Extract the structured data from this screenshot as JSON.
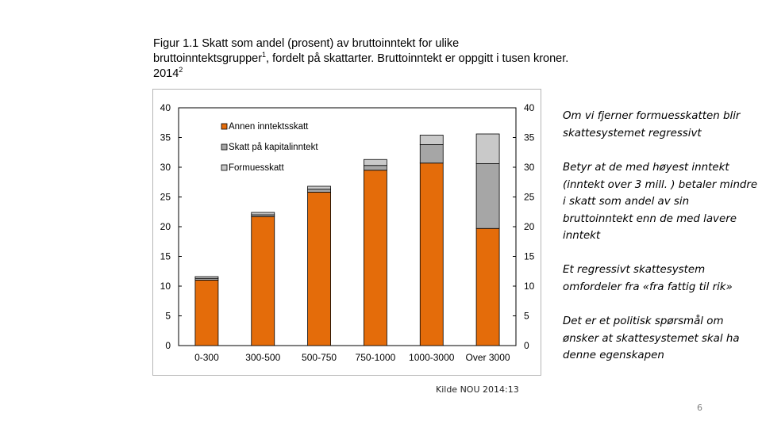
{
  "slide": {
    "title_line1": "Figur 1.1 Skatt som andel (prosent) av bruttoinntekt for ulike",
    "title_line2_a": "bruttoinntektsgrupper",
    "title_sup1": "1",
    "title_line2_b": ", fordelt på skattarter. Bruttoinntekt er oppgitt i tusen kroner.",
    "title_line3": "2014",
    "title_sup2": "2",
    "notes": [
      "Om vi fjerner formuesskatten blir skattesystemet regressivt",
      "Betyr at de med høyest inntekt (inntekt over 3 mill. ) betaler mindre i skatt som andel av sin bruttoinntekt enn de med lavere inntekt",
      "Et regressivt skattesystem omfordeler fra «fra fattig til rik»",
      "Det er et politisk spørsmål om ønsker at skattesystemet skal ha denne egenskapen"
    ],
    "source": "Kilde NOU 2014:13",
    "page_number": "6"
  },
  "chart_data": {
    "type": "bar",
    "stacked": true,
    "categories": [
      "0-300",
      "300-500",
      "500-750",
      "750-1000",
      "1000-3000",
      "Over 3000"
    ],
    "series": [
      {
        "name": "Annen inntektsskatt",
        "color": "#E46C0A",
        "values": [
          11.0,
          21.7,
          25.8,
          29.5,
          30.7,
          19.7
        ]
      },
      {
        "name": "Skatt på kapitalinntekt",
        "color": "#A6A6A6",
        "values": [
          0.3,
          0.3,
          0.5,
          0.8,
          3.1,
          10.9
        ]
      },
      {
        "name": "Formuesskatt",
        "color": "#C9C9C9",
        "values": [
          0.3,
          0.4,
          0.5,
          1.0,
          1.6,
          5.0
        ]
      }
    ],
    "ylim": [
      0,
      40
    ],
    "yticks": [
      0,
      5,
      10,
      15,
      20,
      25,
      30,
      35,
      40
    ],
    "right_axis": true,
    "grid": false,
    "legend_position": "top-left",
    "xlabel": "",
    "ylabel": ""
  }
}
